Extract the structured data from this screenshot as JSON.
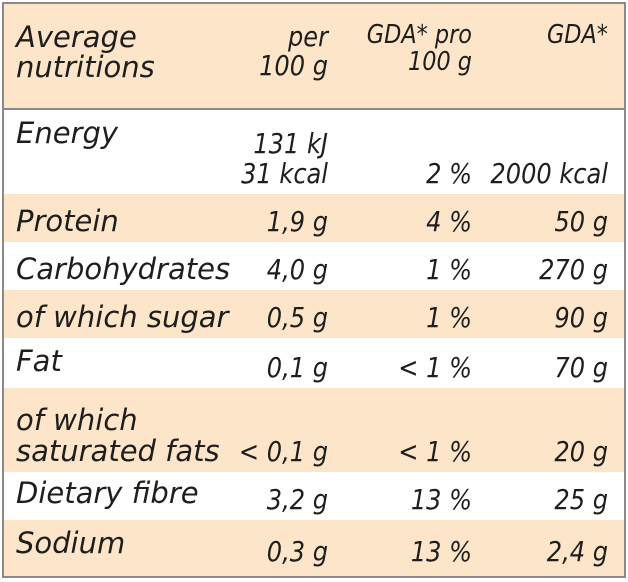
{
  "header": {
    "label_line1": "Average",
    "label_line2": "nutritions",
    "per_line1": "per",
    "per_line2": "100 g",
    "gda_line1": "GDA* pro",
    "gda_line2": "100 g",
    "gdav": "GDA*"
  },
  "rows": [
    {
      "label": "Energy",
      "per_line1": "131 kJ",
      "per_line2": "31 kcal",
      "gda": "2 %",
      "gdav": "2000 kcal"
    },
    {
      "label": "Protein",
      "per": "1,9 g",
      "gda": "4 %",
      "gdav": "50 g"
    },
    {
      "label": "Carbohydrates",
      "per": "4,0 g",
      "gda": "1 %",
      "gdav": "270 g"
    },
    {
      "label": "of which sugar",
      "per": "0,5 g",
      "gda": "1 %",
      "gdav": "90 g"
    },
    {
      "label": "Fat",
      "per": "0,1 g",
      "gda": "< 1 %",
      "gdav": "70 g"
    },
    {
      "label_line1": "of which",
      "label_line2": "saturated fats",
      "per": "< 0,1 g",
      "gda": "< 1 %",
      "gdav": "20 g"
    },
    {
      "label": "Dietary fibre",
      "per": "3,2 g",
      "gda": "13 %",
      "gdav": "25 g"
    },
    {
      "label": "Sodium",
      "per": "0,3 g",
      "gda": "13 %",
      "gdav": "2,4 g"
    }
  ],
  "colors": {
    "shaded_row": "#fde5c9",
    "border": "#8a8a8a",
    "text": "#1e1e1e"
  }
}
